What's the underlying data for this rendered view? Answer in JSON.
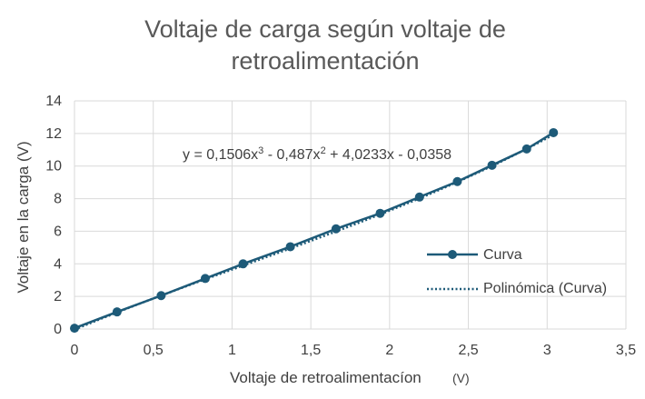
{
  "chart_data": {
    "type": "scatter",
    "title_line1": "Voltaje de carga según voltaje de",
    "title_line2": "retroalimentación",
    "xlabel": "Voltaje de retroalimentacíon",
    "xlabel_unit": "(V)",
    "ylabel": "Voltaje en la carga (V)",
    "xlim": [
      0,
      3.5
    ],
    "ylim": [
      0,
      14
    ],
    "x_ticks": [
      "0",
      "0,5",
      "1",
      "1,5",
      "2",
      "2,5",
      "3",
      "3,5"
    ],
    "y_ticks": [
      "0",
      "2",
      "4",
      "6",
      "8",
      "10",
      "12",
      "14"
    ],
    "grid": true,
    "series": [
      {
        "name": "Curva",
        "color": "#1d5a78",
        "marker": "circle",
        "x": [
          0,
          0.27,
          0.55,
          0.83,
          1.07,
          1.37,
          1.66,
          1.94,
          2.19,
          2.43,
          2.65,
          2.87,
          3.04
        ],
        "y": [
          0.05,
          1.05,
          2.05,
          3.1,
          4.0,
          5.05,
          6.15,
          7.1,
          8.1,
          9.05,
          10.05,
          11.05,
          12.05
        ]
      }
    ],
    "trendline": {
      "name": "Polinómica (Curva)",
      "type": "polynomial",
      "order": 3,
      "coefficients": [
        0.1506,
        -0.487,
        4.0233,
        -0.0358
      ],
      "equation_parts": [
        "y = 0,1506x",
        "3",
        " - 0,487x",
        "2",
        " + 4,0233x - 0,0358"
      ],
      "color": "#1d5a78",
      "style": "dotted"
    },
    "legend_position": "right"
  }
}
